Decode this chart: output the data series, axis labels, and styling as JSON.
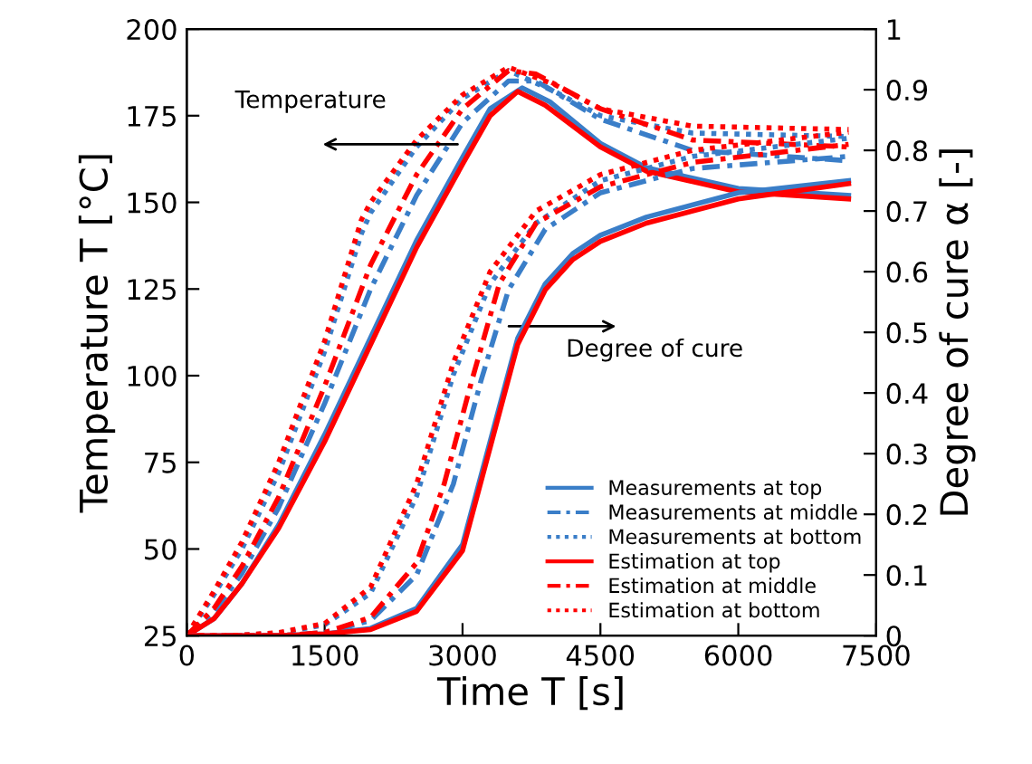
{
  "chart_data": {
    "type": "line",
    "xlabel": "Time T [s]",
    "ylabel": "Temperature T [°C]",
    "y2label": "Degree of cure α [-]",
    "xlim": [
      0,
      7500
    ],
    "xticks": [
      0,
      1500,
      3000,
      4500,
      6000,
      7500
    ],
    "ylim": [
      25,
      200
    ],
    "yticks": [
      25,
      50,
      75,
      100,
      125,
      150,
      175,
      200
    ],
    "y2lim": [
      0,
      1
    ],
    "y2ticks": [
      0,
      0.1,
      0.2,
      0.3,
      0.4,
      0.5,
      0.6,
      0.7,
      0.8,
      0.9,
      1
    ],
    "grid": false,
    "legend": "bottom right",
    "marker": "none",
    "annotations": [
      "Temperature",
      "Degree of cure"
    ],
    "series": [
      {
        "name": "Measurements at top",
        "color": "#3a7ec8",
        "line_style": "solid",
        "axis": "y",
        "x": [
          0,
          300,
          600,
          1000,
          1500,
          2000,
          2500,
          3000,
          3300,
          3650,
          3950,
          4500,
          5000,
          6000,
          7200
        ],
        "values": [
          25,
          30,
          40,
          57,
          83,
          111,
          139,
          163,
          177,
          183,
          179,
          167,
          160,
          154,
          152
        ]
      },
      {
        "name": "Measurements at middle",
        "color": "#3a7ec8",
        "line_style": "dashed",
        "axis": "y",
        "x": [
          0,
          300,
          600,
          1000,
          1500,
          2000,
          2500,
          3000,
          3500,
          3800,
          4500,
          5500,
          7200
        ],
        "values": [
          25,
          32,
          43,
          62,
          92,
          125,
          152,
          173,
          185,
          185,
          174,
          165,
          162
        ]
      },
      {
        "name": "Measurements at bottom",
        "color": "#3a7ec8",
        "line_style": "dotted",
        "axis": "y",
        "x": [
          0,
          300,
          600,
          1000,
          1500,
          1900,
          2000,
          2500,
          3000,
          3500,
          4000,
          4500,
          5500,
          7200
        ],
        "values": [
          25,
          37,
          50,
          72,
          107,
          141,
          147,
          166,
          180,
          188,
          182,
          175,
          170,
          169
        ]
      },
      {
        "name": "Estimation at top",
        "color": "#ff0000",
        "line_style": "solid",
        "axis": "y",
        "x": [
          0,
          300,
          600,
          1000,
          1500,
          2000,
          2500,
          3000,
          3300,
          3600,
          3900,
          4500,
          5000,
          6000,
          7200
        ],
        "values": [
          25,
          30,
          40,
          56,
          81,
          109,
          137,
          161,
          175,
          182,
          178,
          166,
          159,
          153,
          151
        ]
      },
      {
        "name": "Estimation at middle",
        "color": "#ff0000",
        "line_style": "dashed",
        "axis": "y",
        "x": [
          0,
          300,
          600,
          1000,
          1500,
          2000,
          2500,
          3000,
          3500,
          3800,
          4500,
          5500,
          7200
        ],
        "values": [
          25,
          33,
          45,
          65,
          97,
          132,
          158,
          177,
          188,
          187,
          177,
          168,
          166
        ]
      },
      {
        "name": "Estimation at bottom",
        "color": "#ff0000",
        "line_style": "dotted",
        "axis": "y",
        "x": [
          0,
          300,
          600,
          1000,
          1500,
          1900,
          2000,
          2500,
          3000,
          3500,
          4000,
          4500,
          5500,
          7200
        ],
        "values": [
          25,
          38,
          52,
          75,
          110,
          145,
          150,
          168,
          181,
          189,
          184,
          177,
          172,
          171
        ]
      },
      {
        "color": "#3a7ec8",
        "line_style": "solid",
        "axis": "y2",
        "x": [
          0,
          1000,
          1500,
          2000,
          2500,
          3000,
          3300,
          3600,
          3900,
          4200,
          4500,
          5000,
          6000,
          7200
        ],
        "values": [
          0,
          0,
          0.003,
          0.012,
          0.045,
          0.15,
          0.32,
          0.49,
          0.58,
          0.63,
          0.66,
          0.69,
          0.73,
          0.75
        ]
      },
      {
        "color": "#3a7ec8",
        "line_style": "dashed",
        "axis": "y2",
        "x": [
          0,
          1000,
          1500,
          2000,
          2500,
          2900,
          3200,
          3500,
          3900,
          4500,
          5500,
          7200
        ],
        "values": [
          0,
          0,
          0.005,
          0.025,
          0.1,
          0.25,
          0.42,
          0.57,
          0.67,
          0.73,
          0.77,
          0.79
        ]
      },
      {
        "color": "#3a7ec8",
        "line_style": "dotted",
        "axis": "y2",
        "x": [
          0,
          500,
          1000,
          1500,
          2000,
          2500,
          2900,
          3300,
          3800,
          4500,
          5500,
          7200
        ],
        "values": [
          0,
          0,
          0.004,
          0.018,
          0.07,
          0.23,
          0.43,
          0.58,
          0.68,
          0.75,
          0.79,
          0.82
        ]
      },
      {
        "color": "#ff0000",
        "line_style": "solid",
        "axis": "y2",
        "x": [
          0,
          1000,
          1500,
          2000,
          2500,
          3000,
          3300,
          3600,
          3900,
          4200,
          4500,
          5000,
          6000,
          7200
        ],
        "values": [
          0,
          0,
          0.003,
          0.01,
          0.04,
          0.14,
          0.31,
          0.48,
          0.57,
          0.62,
          0.65,
          0.68,
          0.72,
          0.745
        ]
      },
      {
        "color": "#ff0000",
        "line_style": "dashed",
        "axis": "y2",
        "x": [
          0,
          1000,
          1500,
          2000,
          2500,
          2800,
          3100,
          3400,
          3800,
          4500,
          5500,
          7200
        ],
        "values": [
          0,
          0,
          0.005,
          0.03,
          0.12,
          0.25,
          0.42,
          0.58,
          0.68,
          0.74,
          0.78,
          0.81
        ]
      },
      {
        "color": "#ff0000",
        "line_style": "dotted",
        "axis": "y2",
        "x": [
          0,
          500,
          1000,
          1500,
          2000,
          2500,
          2900,
          3300,
          3800,
          4500,
          5500,
          7200
        ],
        "values": [
          0,
          0,
          0.005,
          0.02,
          0.08,
          0.25,
          0.45,
          0.6,
          0.7,
          0.76,
          0.8,
          0.83
        ]
      }
    ]
  }
}
